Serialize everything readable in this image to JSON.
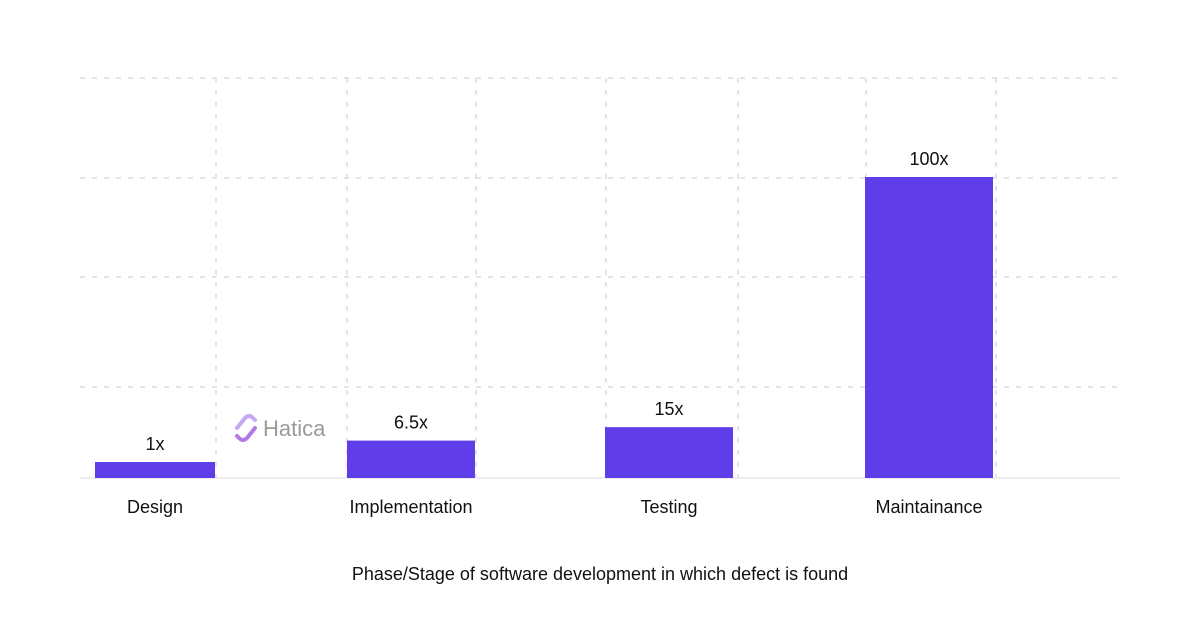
{
  "chart_data": {
    "type": "bar",
    "categories": [
      "Design",
      "Implementation",
      "Testing",
      "Maintainance"
    ],
    "values": [
      1,
      6.5,
      15,
      100
    ],
    "value_labels": [
      "1x",
      "6.5x",
      "15x",
      "100x"
    ],
    "xlabel": "Phase/Stage of software development in which defect is found",
    "grid": true,
    "bar_color": "#5F3DE8"
  },
  "watermark": {
    "text": "Hatica",
    "icon": "hatica-logo-icon",
    "icon_colors": [
      "#C7A8F5",
      "#B07BE8"
    ]
  }
}
